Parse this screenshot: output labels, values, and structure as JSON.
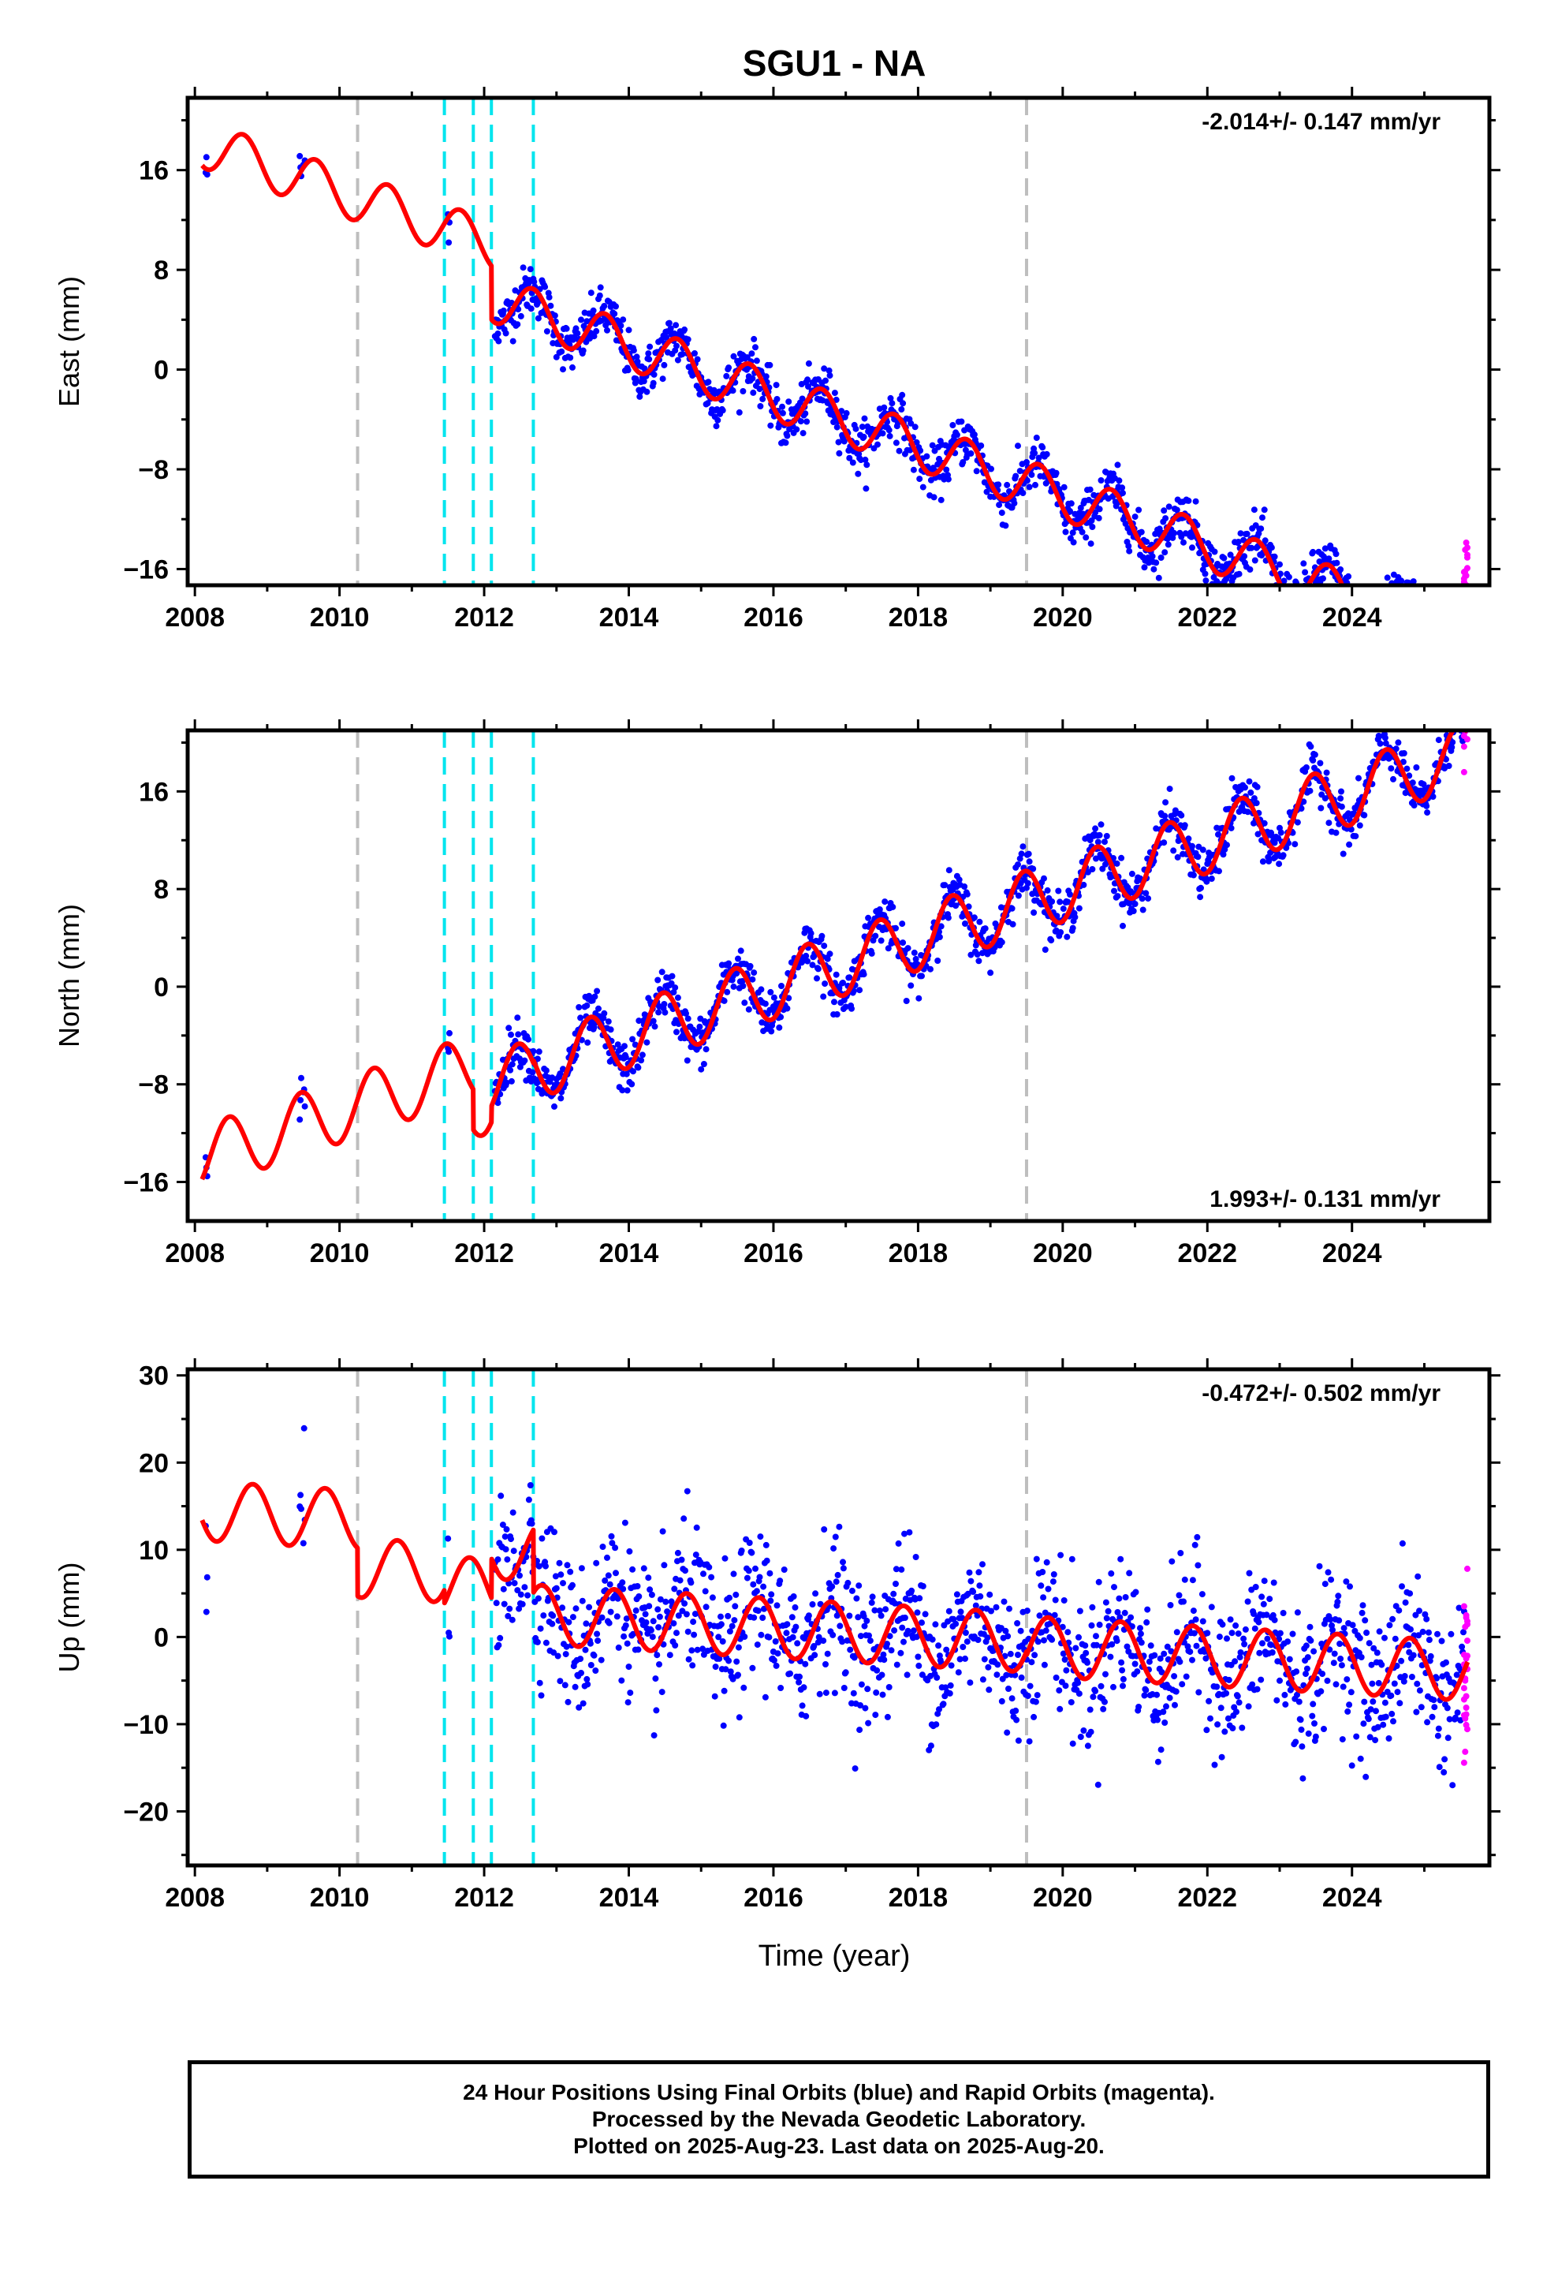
{
  "page_title": "SGU1 - NA",
  "colors": {
    "final_orbits": "#0000ff",
    "rapid_orbits": "#ff00ff",
    "model": "#ff0000",
    "equipment_change": "#00e5ee",
    "other_event": "#bebebe"
  },
  "chart_data": [
    {
      "type": "scatter",
      "panel": "east",
      "title": "",
      "xlabel": "",
      "ylabel": "East (mm)",
      "xlim": [
        2007.9,
        2025.9
      ],
      "ylim": [
        -17.3,
        21.8
      ],
      "x_ticks": [
        2008,
        2010,
        2012,
        2014,
        2016,
        2018,
        2020,
        2022,
        2024
      ],
      "y_ticks": [
        -16,
        -8,
        0,
        8,
        16
      ],
      "y_tick_labels": [
        "−16",
        "−8",
        "0",
        "8",
        "16"
      ],
      "rate_text": "-2.014+/- 0.147 mm/yr",
      "rate_position": "top-right",
      "grid": false,
      "series": [
        {
          "name": "Final Orbits",
          "color": "#0000ff"
        },
        {
          "name": "Rapid Orbits",
          "color": "#ff00ff"
        },
        {
          "name": "Model",
          "color": "#ff0000"
        }
      ]
    },
    {
      "type": "scatter",
      "panel": "north",
      "title": "",
      "xlabel": "",
      "ylabel": "North (mm)",
      "xlim": [
        2007.9,
        2025.9
      ],
      "ylim": [
        -19.2,
        21.0
      ],
      "x_ticks": [
        2008,
        2010,
        2012,
        2014,
        2016,
        2018,
        2020,
        2022,
        2024
      ],
      "y_ticks": [
        -16,
        -8,
        0,
        8,
        16
      ],
      "y_tick_labels": [
        "−16",
        "−8",
        "0",
        "8",
        "16"
      ],
      "rate_text": "1.993+/- 0.131 mm/yr",
      "rate_position": "bottom-right",
      "grid": false,
      "series": [
        {
          "name": "Final Orbits",
          "color": "#0000ff"
        },
        {
          "name": "Rapid Orbits",
          "color": "#ff00ff"
        },
        {
          "name": "Model",
          "color": "#ff0000"
        }
      ]
    },
    {
      "type": "scatter",
      "panel": "up",
      "title": "",
      "xlabel": "Time (year)",
      "ylabel": "Up (mm)",
      "xlim": [
        2007.9,
        2025.9
      ],
      "ylim": [
        -26.2,
        30.7
      ],
      "x_ticks": [
        2008,
        2010,
        2012,
        2014,
        2016,
        2018,
        2020,
        2022,
        2024
      ],
      "y_ticks": [
        -20,
        -10,
        0,
        10,
        20,
        30
      ],
      "y_tick_labels": [
        "−20",
        "−10",
        "0",
        "10",
        "20",
        "30"
      ],
      "rate_text": "-0.472+/- 0.502 mm/yr",
      "rate_position": "top-right",
      "grid": false,
      "series": [
        {
          "name": "Final Orbits",
          "color": "#0000ff"
        },
        {
          "name": "Rapid Orbits",
          "color": "#ff00ff"
        },
        {
          "name": "Model",
          "color": "#ff0000"
        }
      ]
    }
  ],
  "event_lines": {
    "equipment_change_years": [
      2011.45,
      2011.85,
      2012.1,
      2012.68
    ],
    "other_event_years": [
      2010.25,
      2019.5
    ]
  },
  "model_params": {
    "east": {
      "rate": -2.014,
      "annual_amp": 1.9,
      "annual_phase_year": 0.67,
      "offset_segments": [
        [
          2007.9,
          2012.1,
          18.3
        ],
        [
          2012.1,
          2025.9,
          14.0
        ]
      ],
      "ref_year": 2008.0
    },
    "north": {
      "rate": 1.993,
      "annual_amp": 2.6,
      "annual_phase_year": 0.47,
      "offset_segments": [
        [
          2007.9,
          2011.85,
          -14.2
        ],
        [
          2011.85,
          2012.1,
          -17.5
        ],
        [
          2012.1,
          2012.68,
          -16.2
        ],
        [
          2012.68,
          2025.9,
          -16.0
        ]
      ],
      "ref_year": 2008.0
    },
    "up": {
      "rate": -0.472,
      "annual_amp": 3.4,
      "annual_phase_year": 0.8,
      "offset_segments": [
        [
          2007.9,
          2010.25,
          14.5
        ],
        [
          2010.25,
          2011.45,
          9.0
        ],
        [
          2011.45,
          2012.1,
          7.5
        ],
        [
          2012.1,
          2012.68,
          12.0
        ],
        [
          2012.68,
          2019.5,
          4.8
        ],
        [
          2019.5,
          2025.9,
          4.4
        ]
      ],
      "ref_year": 2008.0
    }
  },
  "footer": {
    "line1": "24 Hour Positions Using Final Orbits (blue) and Rapid Orbits (magenta).",
    "line2": "Processed by the Nevada Geodetic Laboratory.",
    "line3": "Plotted on 2025-Aug-23. Last data on 2025-Aug-20."
  }
}
